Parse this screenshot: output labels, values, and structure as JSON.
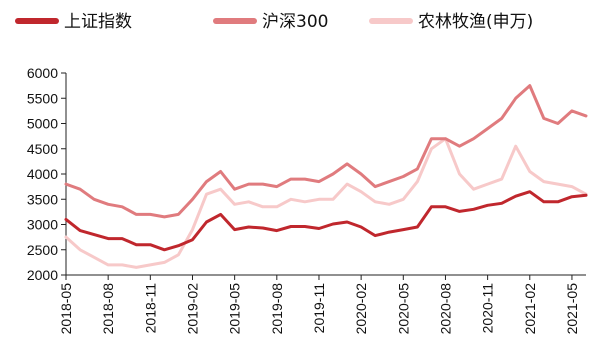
{
  "chart_data": {
    "type": "line",
    "title": "",
    "xlabel": "",
    "ylabel": "",
    "ylim": [
      2000,
      6000
    ],
    "yticks": [
      2000,
      2500,
      3000,
      3500,
      4000,
      4500,
      5000,
      5500,
      6000
    ],
    "xticks": [
      "2018-05",
      "2018-08",
      "2018-11",
      "2019-02",
      "2019-05",
      "2019-08",
      "2019-11",
      "2020-02",
      "2020-05",
      "2020-08",
      "2020-11",
      "2021-02",
      "2021-05"
    ],
    "grid": false,
    "legend_position": "top",
    "x": [
      "2018-05",
      "2018-06",
      "2018-07",
      "2018-08",
      "2018-09",
      "2018-10",
      "2018-11",
      "2018-12",
      "2019-01",
      "2019-02",
      "2019-03",
      "2019-04",
      "2019-05",
      "2019-06",
      "2019-07",
      "2019-08",
      "2019-09",
      "2019-10",
      "2019-11",
      "2019-12",
      "2020-01",
      "2020-02",
      "2020-03",
      "2020-04",
      "2020-05",
      "2020-06",
      "2020-07",
      "2020-08",
      "2020-09",
      "2020-10",
      "2020-11",
      "2020-12",
      "2021-01",
      "2021-02",
      "2021-03",
      "2021-04",
      "2021-05",
      "2021-06"
    ],
    "series": [
      {
        "name": "上证指数",
        "color": "#c0272d",
        "values": [
          3100,
          2880,
          2800,
          2720,
          2720,
          2600,
          2600,
          2500,
          2580,
          2700,
          3050,
          3200,
          2900,
          2950,
          2930,
          2880,
          2960,
          2960,
          2920,
          3010,
          3050,
          2950,
          2780,
          2850,
          2900,
          2950,
          3350,
          3350,
          3260,
          3300,
          3380,
          3420,
          3560,
          3650,
          3450,
          3450,
          3550,
          3580
        ]
      },
      {
        "name": "沪深300",
        "color": "#e07b7e",
        "values": [
          3800,
          3700,
          3500,
          3400,
          3350,
          3200,
          3200,
          3150,
          3200,
          3500,
          3850,
          4050,
          3700,
          3800,
          3800,
          3750,
          3900,
          3900,
          3850,
          4000,
          4200,
          4000,
          3750,
          3850,
          3950,
          4100,
          4700,
          4700,
          4550,
          4700,
          4900,
          5100,
          5500,
          5750,
          5100,
          5000,
          5250,
          5150
        ]
      },
      {
        "name": "农林牧渔(申万)",
        "color": "#f7c9c9",
        "values": [
          2750,
          2500,
          2350,
          2200,
          2200,
          2150,
          2200,
          2250,
          2400,
          2900,
          3600,
          3700,
          3400,
          3450,
          3350,
          3350,
          3500,
          3450,
          3500,
          3500,
          3800,
          3650,
          3450,
          3400,
          3500,
          3850,
          4500,
          4700,
          4000,
          3700,
          3800,
          3900,
          4550,
          4050,
          3850,
          3800,
          3750,
          3600
        ]
      }
    ]
  }
}
